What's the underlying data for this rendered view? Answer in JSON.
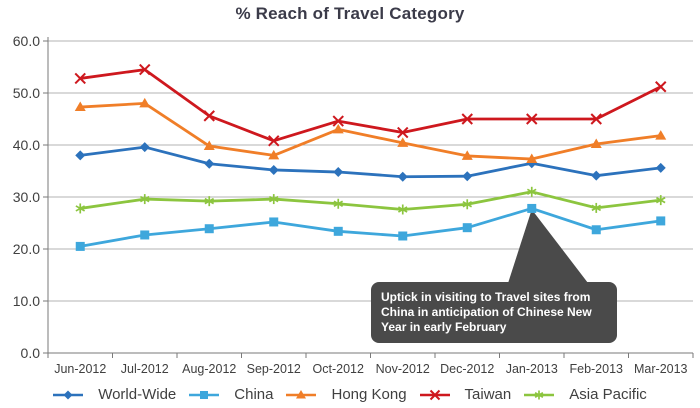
{
  "chart_data": {
    "type": "line",
    "title": "% Reach of Travel Category",
    "categories": [
      "Jun-2012",
      "Jul-2012",
      "Aug-2012",
      "Sep-2012",
      "Oct-2012",
      "Nov-2012",
      "Dec-2012",
      "Jan-2013",
      "Feb-2013",
      "Mar-2013"
    ],
    "series": [
      {
        "name": "World-Wide",
        "color": "#2c72bc",
        "marker": "diamond",
        "values": [
          38.0,
          39.6,
          36.4,
          35.2,
          34.8,
          33.9,
          34.0,
          36.5,
          34.1,
          35.6
        ]
      },
      {
        "name": "China",
        "color": "#3ea7dc",
        "marker": "square",
        "values": [
          20.5,
          22.7,
          23.9,
          25.2,
          23.4,
          22.5,
          24.1,
          27.8,
          23.7,
          25.4
        ]
      },
      {
        "name": "Hong Kong",
        "color": "#f07e28",
        "marker": "triangle",
        "values": [
          47.3,
          48.0,
          39.8,
          38.0,
          43.0,
          40.4,
          37.9,
          37.3,
          40.2,
          41.8
        ]
      },
      {
        "name": "Taiwan",
        "color": "#ce181e",
        "marker": "x",
        "values": [
          52.8,
          54.5,
          45.6,
          40.8,
          44.6,
          42.4,
          45.0,
          45.0,
          45.0,
          51.2
        ]
      },
      {
        "name": "Asia Pacific",
        "color": "#8cc53f",
        "marker": "asterisk",
        "values": [
          27.8,
          29.6,
          29.2,
          29.6,
          28.7,
          27.6,
          28.6,
          31.0,
          27.9,
          29.4
        ]
      }
    ],
    "ylim": [
      0,
      60
    ],
    "ytick_step": 10,
    "ytick_labels": [
      "0.0",
      "10.0",
      "20.0",
      "30.0",
      "40.0",
      "50.0",
      "60.0"
    ],
    "grid": "horizontal",
    "legend_position": "bottom",
    "annotation": {
      "text": "Uptick in visiting to Travel sites from China in anticipation of Chinese New Year in early February",
      "target_series": "China",
      "target_category": "Jan-2013"
    }
  },
  "colors": {
    "title": "#3b3b49",
    "axis_text": "#404040",
    "gridline": "#b3b3b3",
    "axis_line": "#7a7a7a",
    "callout_bg": "#4a4a4a",
    "callout_text": "#ffffff",
    "background": "#ffffff"
  }
}
